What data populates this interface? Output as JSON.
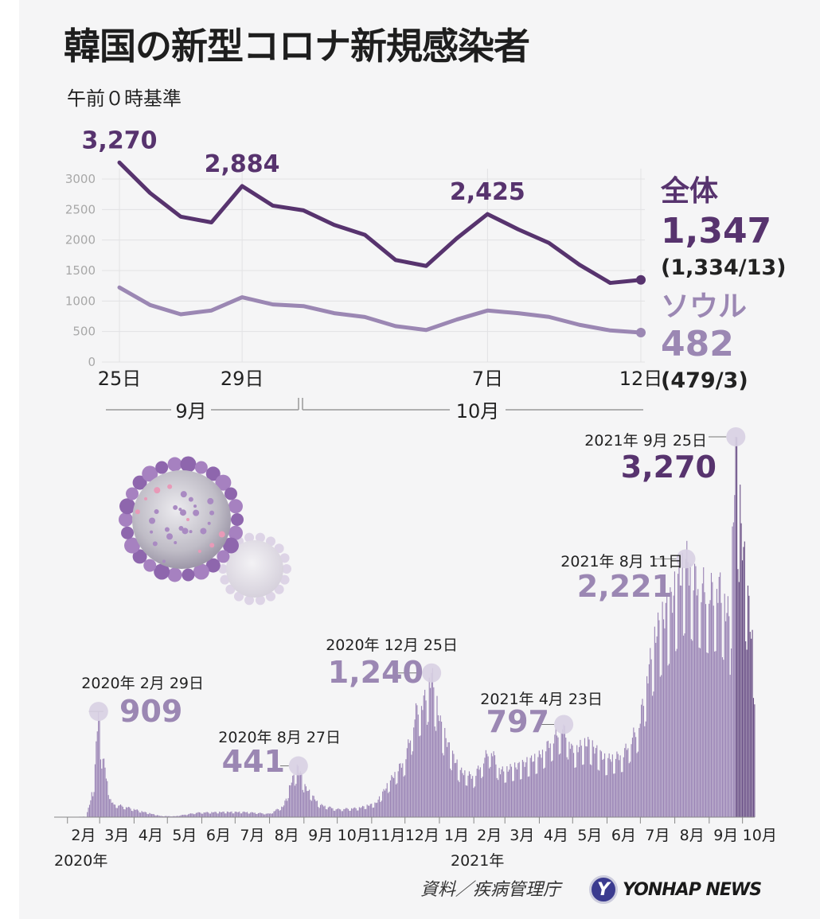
{
  "title": "韓国の新型コロナ新規感染者",
  "subtitle": "午前０時基準",
  "source": "資料／疾病管理庁",
  "logo_text": "YONHAP NEWS",
  "colors": {
    "total": "#57336e",
    "seoul": "#9b87b3",
    "bars": "#9a84b5",
    "bars_recent": "#6a4f86",
    "dot": "#d8d0e3"
  },
  "chart_data": [
    {
      "type": "line",
      "x": [
        "9/25",
        "9/26",
        "9/27",
        "9/28",
        "9/29",
        "9/30",
        "10/1",
        "10/2",
        "10/3",
        "10/4",
        "10/5",
        "10/6",
        "10/7",
        "10/8",
        "10/9",
        "10/10",
        "10/11",
        "10/12"
      ],
      "xticks": [
        {
          "label": "25日",
          "index": 0
        },
        {
          "label": "29日",
          "index": 4
        },
        {
          "label": "7日",
          "index": 12
        },
        {
          "label": "12日",
          "index": 17
        }
      ],
      "months": [
        "9月",
        "10月"
      ],
      "yticks": [
        0,
        500,
        1000,
        1500,
        2000,
        2500,
        3000
      ],
      "ylim": [
        0,
        3300
      ],
      "grid": true,
      "series": [
        {
          "name": "全体",
          "values": [
            3270,
            2771,
            2383,
            2289,
            2884,
            2564,
            2486,
            2248,
            2086,
            1673,
            1575,
            2028,
            2425,
            2175,
            1953,
            1594,
            1297,
            1347
          ]
        },
        {
          "name": "ソウル",
          "values": [
            1222,
            935,
            783,
            845,
            1062,
            944,
            917,
            801,
            739,
            589,
            525,
            697,
            844,
            800,
            740,
            610,
            518,
            482
          ]
        }
      ],
      "annotations": [
        {
          "text": "3,270",
          "series": 0,
          "index": 0
        },
        {
          "text": "2,884",
          "series": 0,
          "index": 4
        },
        {
          "text": "2,425",
          "series": 0,
          "index": 12
        }
      ],
      "end_labels": {
        "total_name": "全体",
        "total_value": "1,347",
        "total_detail": "(1,334/13)",
        "seoul_name": "ソウル",
        "seoul_value": "482",
        "seoul_detail": "(479/3)"
      }
    },
    {
      "type": "bar",
      "x_start": "2020-01-20",
      "x_end": "2021-10-12",
      "month_labels": [
        "2月",
        "3月",
        "4月",
        "5月",
        "6月",
        "7月",
        "8月",
        "9月",
        "10月",
        "11月",
        "12月",
        "1月",
        "2月",
        "3月",
        "4月",
        "5月",
        "6月",
        "7月",
        "8月",
        "9月",
        "10月"
      ],
      "year_labels": [
        "2020年",
        "2021年"
      ],
      "series_keypoints": [
        [
          "2020-01-20",
          0
        ],
        [
          "2020-02-18",
          5
        ],
        [
          "2020-02-22",
          150
        ],
        [
          "2020-02-25",
          300
        ],
        [
          "2020-02-29",
          909
        ],
        [
          "2020-03-03",
          580
        ],
        [
          "2020-03-07",
          360
        ],
        [
          "2020-03-12",
          120
        ],
        [
          "2020-03-25",
          90
        ],
        [
          "2020-04-08",
          50
        ],
        [
          "2020-04-25",
          10
        ],
        [
          "2020-05-08",
          8
        ],
        [
          "2020-05-28",
          40
        ],
        [
          "2020-06-20",
          45
        ],
        [
          "2020-07-10",
          45
        ],
        [
          "2020-08-01",
          30
        ],
        [
          "2020-08-14",
          100
        ],
        [
          "2020-08-20",
          290
        ],
        [
          "2020-08-27",
          441
        ],
        [
          "2020-09-02",
          267
        ],
        [
          "2020-09-15",
          110
        ],
        [
          "2020-10-01",
          70
        ],
        [
          "2020-10-20",
          80
        ],
        [
          "2020-11-05",
          120
        ],
        [
          "2020-11-20",
          350
        ],
        [
          "2020-12-01",
          500
        ],
        [
          "2020-12-12",
          950
        ],
        [
          "2020-12-18",
          1000
        ],
        [
          "2020-12-25",
          1240
        ],
        [
          "2021-01-02",
          820
        ],
        [
          "2021-01-10",
          600
        ],
        [
          "2021-01-20",
          400
        ],
        [
          "2021-02-01",
          350
        ],
        [
          "2021-02-16",
          600
        ],
        [
          "2021-02-25",
          400
        ],
        [
          "2021-03-15",
          450
        ],
        [
          "2021-04-01",
          530
        ],
        [
          "2021-04-10",
          640
        ],
        [
          "2021-04-23",
          797
        ],
        [
          "2021-05-01",
          580
        ],
        [
          "2021-05-15",
          650
        ],
        [
          "2021-05-31",
          500
        ],
        [
          "2021-06-15",
          540
        ],
        [
          "2021-06-30",
          800
        ],
        [
          "2021-07-07",
          1200
        ],
        [
          "2021-07-15",
          1600
        ],
        [
          "2021-07-28",
          1850
        ],
        [
          "2021-08-11",
          2221
        ],
        [
          "2021-08-20",
          2050
        ],
        [
          "2021-09-01",
          1950
        ],
        [
          "2021-09-10",
          2000
        ],
        [
          "2021-09-20",
          1700
        ],
        [
          "2021-09-25",
          3270
        ],
        [
          "2021-09-30",
          2500
        ],
        [
          "2021-10-05",
          2000
        ],
        [
          "2021-10-10",
          1500
        ],
        [
          "2021-10-12",
          1347
        ]
      ],
      "ylim": [
        0,
        3270
      ],
      "annotations": [
        {
          "date": "2021-09-25",
          "value": 3270,
          "date_label": "2021年 9月 25日",
          "value_label": "3,270"
        },
        {
          "date": "2021-08-11",
          "value": 2221,
          "date_label": "2021年 8月 11日",
          "value_label": "2,221"
        },
        {
          "date": "2020-12-25",
          "value": 1240,
          "date_label": "2020年 12月 25日",
          "value_label": "1,240"
        },
        {
          "date": "2020-02-29",
          "value": 909,
          "date_label": "2020年 2月 29日",
          "value_label": "909"
        },
        {
          "date": "2021-04-23",
          "value": 797,
          "date_label": "2021年 4月 23日",
          "value_label": "797"
        },
        {
          "date": "2020-08-27",
          "value": 441,
          "date_label": "2020年 8月 27日",
          "value_label": "441"
        }
      ]
    }
  ]
}
